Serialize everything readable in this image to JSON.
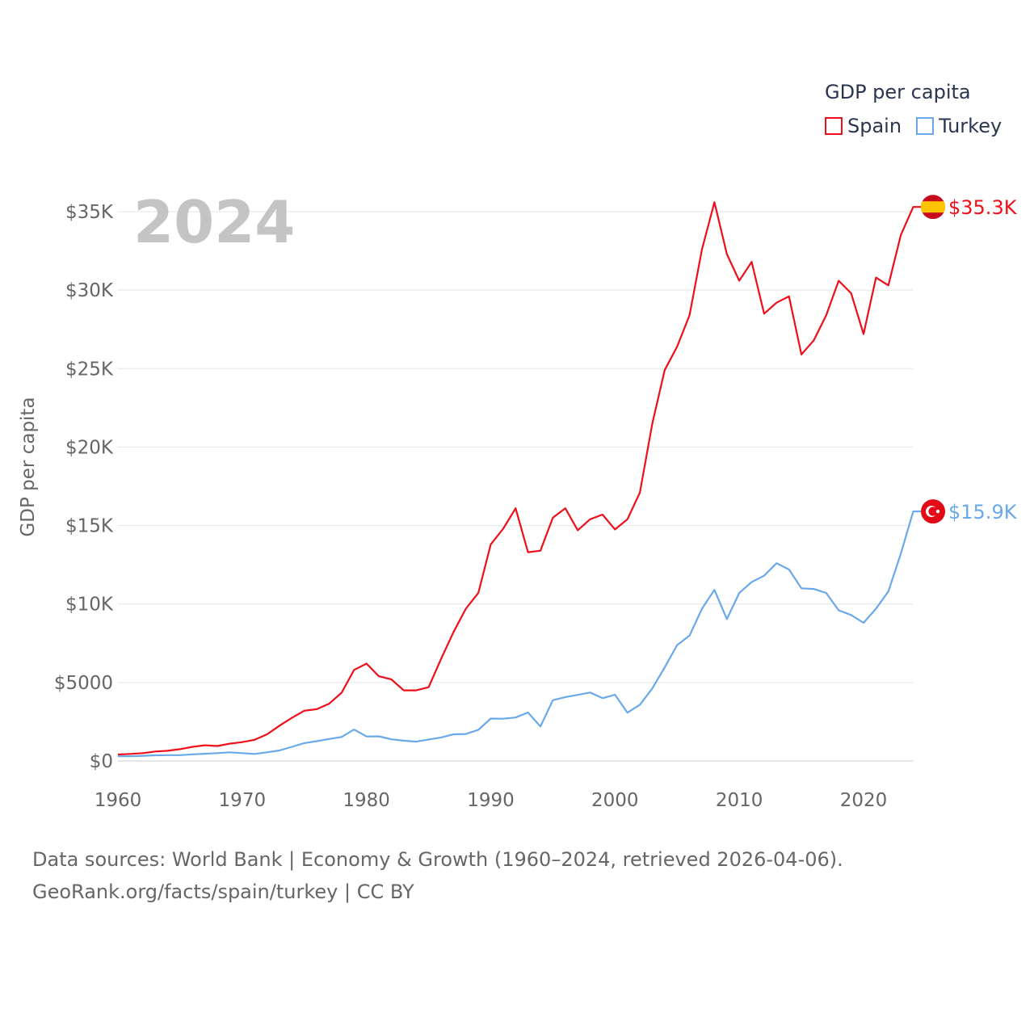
{
  "chart_data": {
    "type": "line",
    "title": "",
    "year_label": "2024",
    "ylabel": "GDP per capita",
    "xlabel": "",
    "xlim": [
      1960,
      2024
    ],
    "ylim": [
      0,
      35000
    ],
    "x_ticks": [
      "1960",
      "1970",
      "1980",
      "1990",
      "2000",
      "2010",
      "2020"
    ],
    "y_ticks": [
      {
        "v": 0,
        "label": "$0"
      },
      {
        "v": 5000,
        "label": "$5000"
      },
      {
        "v": 10000,
        "label": "$10K"
      },
      {
        "v": 15000,
        "label": "$15K"
      },
      {
        "v": 20000,
        "label": "$20K"
      },
      {
        "v": 25000,
        "label": "$25K"
      },
      {
        "v": 30000,
        "label": "$30K"
      },
      {
        "v": 35000,
        "label": "$35K"
      }
    ],
    "grid": true,
    "legend_title": "GDP per capita",
    "legend_position": "top-right",
    "x_start": 1960,
    "series": [
      {
        "name": "Spain",
        "color": "#ee0f1a",
        "end_label": "$35.3K",
        "flag": "spain-flag",
        "values_k": [
          0.41,
          0.45,
          0.5,
          0.6,
          0.65,
          0.75,
          0.9,
          1.0,
          0.95,
          1.1,
          1.2,
          1.35,
          1.7,
          2.25,
          2.75,
          3.2,
          3.3,
          3.65,
          4.35,
          5.8,
          6.2,
          5.4,
          5.2,
          4.5,
          4.5,
          4.7,
          6.5,
          8.2,
          9.7,
          10.7,
          13.8,
          14.8,
          16.1,
          13.3,
          13.4,
          15.5,
          16.1,
          14.7,
          15.4,
          15.7,
          14.75,
          15.4,
          17.1,
          21.5,
          24.9,
          26.4,
          28.4,
          32.6,
          35.6,
          32.3,
          30.6,
          31.8,
          28.5,
          29.2,
          29.6,
          25.9,
          26.8,
          28.4,
          30.6,
          29.8,
          27.2,
          30.8,
          30.3,
          33.5,
          35.3
        ]
      },
      {
        "name": "Turkey",
        "color": "#6aa9e9",
        "end_label": "$15.9K",
        "flag": "turkey-flag",
        "values_k": [
          0.3,
          0.3,
          0.33,
          0.36,
          0.37,
          0.37,
          0.42,
          0.46,
          0.5,
          0.55,
          0.5,
          0.45,
          0.55,
          0.67,
          0.9,
          1.14,
          1.26,
          1.4,
          1.53,
          2.0,
          1.56,
          1.57,
          1.38,
          1.29,
          1.23,
          1.37,
          1.5,
          1.7,
          1.72,
          1.98,
          2.7,
          2.69,
          2.77,
          3.09,
          2.2,
          3.87,
          4.07,
          4.21,
          4.36,
          4.0,
          4.22,
          3.08,
          3.58,
          4.62,
          5.96,
          7.38,
          7.99,
          9.7,
          10.9,
          9.04,
          10.7,
          11.4,
          11.8,
          12.6,
          12.2,
          11.0,
          10.96,
          10.7,
          9.6,
          9.3,
          8.8,
          9.7,
          10.8,
          13.2,
          15.9
        ]
      }
    ]
  },
  "footer": {
    "line1": "Data sources: World Bank | Economy & Growth (1960–2024, retrieved 2026-04-06).",
    "line2": "GeoRank.org/facts/spain/turkey | CC BY"
  }
}
